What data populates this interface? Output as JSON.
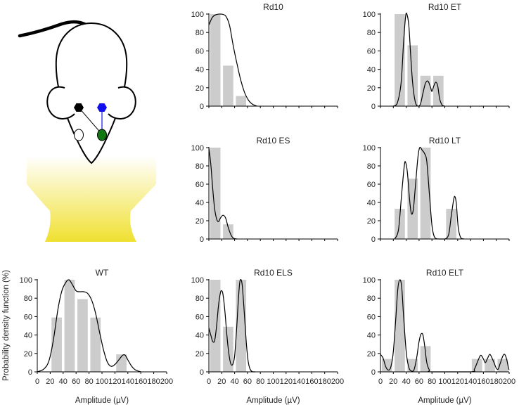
{
  "figure": {
    "ylabel": "Probability density function (%)",
    "xlabel": "Amplitude (µV)",
    "illustration": "mouse-head-schematic-icon",
    "colors": {
      "bars": "#cccccc",
      "curve": "#000000",
      "light": "#f0e030",
      "marker_black": "#000000",
      "marker_blue": "#1010ee",
      "marker_green": "#117711"
    }
  },
  "chart_data": [
    {
      "type": "bar",
      "title": "Rd10",
      "xlim": [
        0,
        200
      ],
      "ylim": [
        0,
        100
      ],
      "xticks": [],
      "yticks": [
        0,
        20,
        40,
        60,
        80,
        100
      ],
      "bin_width": 16,
      "bars": [
        {
          "x": 10,
          "y": 100
        },
        {
          "x": 30,
          "y": 44
        },
        {
          "x": 50,
          "y": 11
        }
      ],
      "curve": [
        [
          0,
          88
        ],
        [
          5,
          96
        ],
        [
          10,
          99
        ],
        [
          18,
          100
        ],
        [
          26,
          98
        ],
        [
          32,
          88
        ],
        [
          38,
          65
        ],
        [
          44,
          45
        ],
        [
          50,
          27
        ],
        [
          56,
          14
        ],
        [
          62,
          6
        ],
        [
          68,
          2
        ],
        [
          75,
          0
        ]
      ]
    },
    {
      "type": "bar",
      "title": "Rd10 ET",
      "xlim": [
        0,
        200
      ],
      "ylim": [
        0,
        100
      ],
      "xticks": [],
      "yticks": [
        0,
        20,
        40,
        60,
        80,
        100
      ],
      "bin_width": 16,
      "bars": [
        {
          "x": 30,
          "y": 100
        },
        {
          "x": 50,
          "y": 66
        },
        {
          "x": 70,
          "y": 33
        },
        {
          "x": 90,
          "y": 33
        }
      ],
      "curve": [
        [
          20,
          0
        ],
        [
          26,
          3
        ],
        [
          32,
          25
        ],
        [
          36,
          70
        ],
        [
          39,
          97
        ],
        [
          41,
          100
        ],
        [
          44,
          88
        ],
        [
          47,
          55
        ],
        [
          50,
          25
        ],
        [
          54,
          5
        ],
        [
          58,
          0
        ],
        [
          62,
          2
        ],
        [
          66,
          14
        ],
        [
          70,
          25
        ],
        [
          74,
          27
        ],
        [
          78,
          20
        ],
        [
          80,
          16
        ],
        [
          83,
          22
        ],
        [
          86,
          26
        ],
        [
          89,
          22
        ],
        [
          92,
          8
        ],
        [
          96,
          1
        ],
        [
          100,
          0
        ]
      ]
    },
    {
      "type": "bar",
      "title": "Rd10 ES",
      "xlim": [
        0,
        200
      ],
      "ylim": [
        0,
        100
      ],
      "xticks": [],
      "yticks": [
        0,
        20,
        40,
        60,
        80,
        100
      ],
      "bin_width": 16,
      "bars": [
        {
          "x": 10,
          "y": 100
        },
        {
          "x": 30,
          "y": 16
        }
      ],
      "curve": [
        [
          0,
          100
        ],
        [
          3,
          82
        ],
        [
          6,
          55
        ],
        [
          9,
          33
        ],
        [
          12,
          22
        ],
        [
          15,
          19
        ],
        [
          18,
          23
        ],
        [
          22,
          26
        ],
        [
          26,
          23
        ],
        [
          30,
          13
        ],
        [
          34,
          5
        ],
        [
          38,
          1
        ],
        [
          44,
          0
        ]
      ]
    },
    {
      "type": "bar",
      "title": "Rd10 LT",
      "xlim": [
        0,
        200
      ],
      "ylim": [
        0,
        100
      ],
      "xticks": [],
      "yticks": [
        0,
        20,
        40,
        60,
        80,
        100
      ],
      "bin_width": 16,
      "bars": [
        {
          "x": 30,
          "y": 33
        },
        {
          "x": 50,
          "y": 66
        },
        {
          "x": 70,
          "y": 100
        },
        {
          "x": 110,
          "y": 33
        }
      ],
      "curve": [
        [
          22,
          0
        ],
        [
          28,
          10
        ],
        [
          33,
          50
        ],
        [
          37,
          80
        ],
        [
          39,
          84
        ],
        [
          42,
          72
        ],
        [
          45,
          45
        ],
        [
          48,
          28
        ],
        [
          51,
          32
        ],
        [
          54,
          55
        ],
        [
          58,
          88
        ],
        [
          61,
          100
        ],
        [
          65,
          97
        ],
        [
          69,
          93
        ],
        [
          72,
          85
        ],
        [
          76,
          50
        ],
        [
          80,
          15
        ],
        [
          84,
          2
        ],
        [
          90,
          0
        ],
        [
          100,
          0
        ],
        [
          106,
          5
        ],
        [
          110,
          25
        ],
        [
          114,
          44
        ],
        [
          116,
          46
        ],
        [
          118,
          38
        ],
        [
          121,
          12
        ],
        [
          125,
          1
        ],
        [
          130,
          0
        ]
      ]
    },
    {
      "type": "bar",
      "title": "WT",
      "xlim": [
        0,
        200
      ],
      "ylim": [
        0,
        100
      ],
      "xticks": [
        0,
        20,
        40,
        60,
        80,
        100,
        120,
        140,
        160,
        180,
        200
      ],
      "yticks": [
        0,
        20,
        40,
        60,
        80,
        100
      ],
      "bin_width": 16,
      "bars": [
        {
          "x": 30,
          "y": 59
        },
        {
          "x": 50,
          "y": 100
        },
        {
          "x": 70,
          "y": 79
        },
        {
          "x": 90,
          "y": 59
        },
        {
          "x": 130,
          "y": 19
        }
      ],
      "curve": [
        [
          0,
          0
        ],
        [
          10,
          3
        ],
        [
          18,
          12
        ],
        [
          25,
          35
        ],
        [
          32,
          68
        ],
        [
          38,
          88
        ],
        [
          44,
          97
        ],
        [
          49,
          100
        ],
        [
          54,
          95
        ],
        [
          60,
          88
        ],
        [
          66,
          87
        ],
        [
          72,
          87
        ],
        [
          78,
          85
        ],
        [
          84,
          78
        ],
        [
          90,
          64
        ],
        [
          96,
          44
        ],
        [
          102,
          25
        ],
        [
          108,
          11
        ],
        [
          114,
          6
        ],
        [
          120,
          8
        ],
        [
          126,
          13
        ],
        [
          132,
          18
        ],
        [
          136,
          18
        ],
        [
          140,
          13
        ],
        [
          146,
          6
        ],
        [
          152,
          2
        ],
        [
          160,
          0
        ]
      ]
    },
    {
      "type": "bar",
      "title": "Rd10 ELS",
      "xlim": [
        0,
        200
      ],
      "ylim": [
        0,
        100
      ],
      "xticks": [
        0,
        20,
        40,
        60,
        80,
        100,
        120,
        140,
        160,
        180,
        200
      ],
      "yticks": [
        0,
        20,
        40,
        60,
        80,
        100
      ],
      "bin_width": 16,
      "bars": [
        {
          "x": 10,
          "y": 100
        },
        {
          "x": 30,
          "y": 49
        },
        {
          "x": 50,
          "y": 100
        }
      ],
      "curve": [
        [
          0,
          48
        ],
        [
          3,
          40
        ],
        [
          6,
          33
        ],
        [
          9,
          34
        ],
        [
          12,
          50
        ],
        [
          15,
          72
        ],
        [
          18,
          86
        ],
        [
          20,
          88
        ],
        [
          22,
          84
        ],
        [
          25,
          65
        ],
        [
          28,
          40
        ],
        [
          31,
          20
        ],
        [
          34,
          9
        ],
        [
          37,
          8
        ],
        [
          40,
          17
        ],
        [
          43,
          45
        ],
        [
          46,
          80
        ],
        [
          48,
          97
        ],
        [
          50,
          100
        ],
        [
          52,
          93
        ],
        [
          55,
          65
        ],
        [
          58,
          33
        ],
        [
          61,
          12
        ],
        [
          64,
          3
        ],
        [
          68,
          0
        ],
        [
          72,
          0
        ]
      ]
    },
    {
      "type": "bar",
      "title": "Rd10 ELT",
      "xlim": [
        0,
        200
      ],
      "ylim": [
        0,
        100
      ],
      "xticks": [
        0,
        20,
        40,
        60,
        80,
        100,
        120,
        140,
        160,
        180,
        200
      ],
      "yticks": [
        0,
        20,
        40,
        60,
        80,
        100
      ],
      "bin_width": 16,
      "bars": [
        {
          "x": 10,
          "y": 14
        },
        {
          "x": 30,
          "y": 100
        },
        {
          "x": 50,
          "y": 14
        },
        {
          "x": 70,
          "y": 28
        },
        {
          "x": 150,
          "y": 14
        },
        {
          "x": 170,
          "y": 14
        },
        {
          "x": 190,
          "y": 14
        }
      ],
      "curve": [
        [
          0,
          19
        ],
        [
          4,
          15
        ],
        [
          8,
          6
        ],
        [
          12,
          2
        ],
        [
          16,
          5
        ],
        [
          20,
          22
        ],
        [
          24,
          60
        ],
        [
          27,
          90
        ],
        [
          30,
          100
        ],
        [
          33,
          92
        ],
        [
          36,
          60
        ],
        [
          40,
          22
        ],
        [
          44,
          5
        ],
        [
          48,
          1
        ],
        [
          52,
          2
        ],
        [
          56,
          14
        ],
        [
          60,
          33
        ],
        [
          63,
          41
        ],
        [
          66,
          40
        ],
        [
          69,
          27
        ],
        [
          72,
          10
        ],
        [
          76,
          2
        ],
        [
          80,
          0
        ],
        [
          140,
          0
        ],
        [
          146,
          3
        ],
        [
          152,
          13
        ],
        [
          156,
          18
        ],
        [
          160,
          14
        ],
        [
          163,
          10
        ],
        [
          166,
          14
        ],
        [
          170,
          19
        ],
        [
          174,
          14
        ],
        [
          177,
          9
        ],
        [
          180,
          4
        ],
        [
          183,
          3
        ],
        [
          186,
          9
        ],
        [
          190,
          17
        ],
        [
          193,
          19
        ],
        [
          196,
          14
        ],
        [
          199,
          4
        ],
        [
          200,
          2
        ]
      ]
    }
  ]
}
